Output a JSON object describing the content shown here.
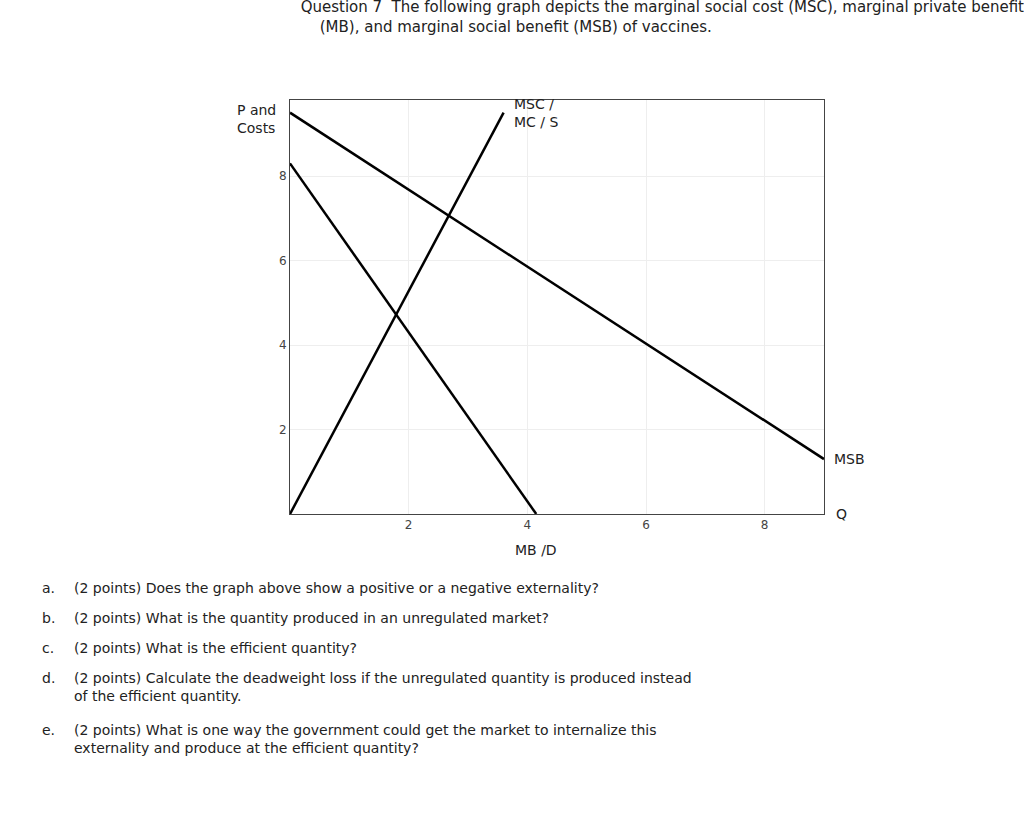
{
  "chart_data": {
    "type": "line",
    "title": "Question 7  The following graph depicts the marginal social cost (MSC), marginal private benefit",
    "subtitle": "    (MB), and marginal social benefit (MSB) of vaccines.",
    "xlabel": "Q",
    "ylabel": "P and\nCosts",
    "series": [
      {
        "name": "MSC /\nMC / S",
        "color": "#000000",
        "x": [
          0,
          3.6
        ],
        "values": [
          0,
          9.5
        ]
      },
      {
        "name": "MB /D",
        "color": "#000000",
        "x": [
          0,
          4.15
        ],
        "values": [
          8.3,
          0
        ]
      },
      {
        "name": "MSB",
        "color": "#000000",
        "x": [
          0,
          9.0
        ],
        "values": [
          9.5,
          1.3
        ]
      }
    ],
    "xlim": [
      0,
      9
    ],
    "ylim": [
      0,
      9.8
    ],
    "xticks": [
      2,
      4,
      6,
      8
    ],
    "yticks": [
      2,
      4,
      6,
      8
    ],
    "grid": true,
    "annotations": [
      "a.\t(2 points) Does the graph above show a positive or a negative externality?",
      "b.\t(2 points) What is the quantity produced in an unregulated market?",
      "c.\t(2 points) What is the efficient quantity?",
      "d.\t(2 points) Calculate the deadweight loss if the unregulated quantity is produced instead\n\tof the efficient quantity.",
      "e.\t(2 points) What is one way the government could get the market to internalize this\n\texternality and produce at the efficient quantity?"
    ]
  }
}
